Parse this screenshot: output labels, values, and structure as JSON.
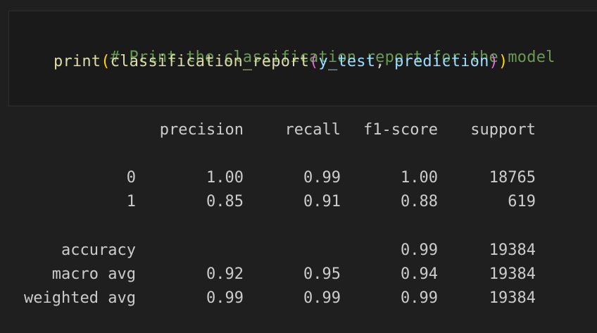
{
  "code": {
    "comment": "# Print the classification report for the model",
    "func_name": "print",
    "open_paren_1": "(",
    "inner_func": "classification_report",
    "open_paren_2": "(",
    "arg1": "y_test",
    "comma": ", ",
    "arg2": "prediction",
    "close_paren_2": ")",
    "close_paren_1": ")"
  },
  "report": {
    "headers": {
      "precision": "precision",
      "recall": "recall",
      "f1": "f1-score",
      "support": "support"
    },
    "rows": [
      {
        "label": "0",
        "precision": "1.00",
        "recall": "0.99",
        "f1": "1.00",
        "support": "18765"
      },
      {
        "label": "1",
        "precision": "0.85",
        "recall": "0.91",
        "f1": "0.88",
        "support": "619"
      }
    ],
    "accuracy": {
      "label": "accuracy",
      "f1": "0.99",
      "support": "19384"
    },
    "macro_avg": {
      "label": "macro avg",
      "precision": "0.92",
      "recall": "0.95",
      "f1": "0.94",
      "support": "19384"
    },
    "weighted_avg": {
      "label": "weighted avg",
      "precision": "0.99",
      "recall": "0.99",
      "f1": "0.99",
      "support": "19384"
    }
  },
  "colors": {
    "background": "#1f1f1f",
    "code_background": "#1a1a1a",
    "comment": "#6a9955",
    "function": "#dcdcaa",
    "paren_level_1": "#ffd700",
    "paren_level_2": "#da70d6",
    "variable": "#9cdcfe",
    "output_text": "#cccccc"
  }
}
